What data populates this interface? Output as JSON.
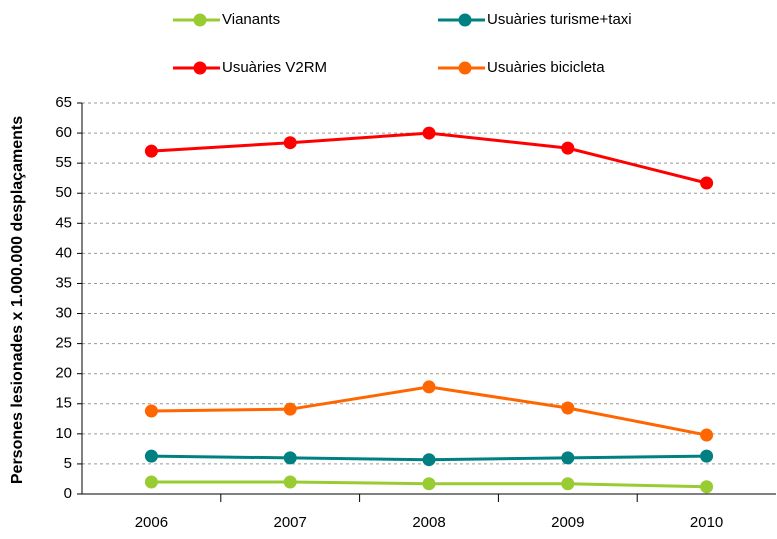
{
  "chart_data": {
    "type": "line",
    "y_label": "Persones lesionades x 1.000.000 desplaçaments",
    "categories": [
      "2006",
      "2007",
      "2008",
      "2009",
      "2010"
    ],
    "series": [
      {
        "name": "Vianants",
        "color": "#99cc33",
        "values": [
          2.0,
          2.0,
          1.7,
          1.7,
          1.2
        ]
      },
      {
        "name": "Usuàries turisme+taxi",
        "color": "#008080",
        "values": [
          6.3,
          6.0,
          5.7,
          6.0,
          6.3
        ]
      },
      {
        "name": "Usuàries V2RM",
        "color": "#ff0000",
        "values": [
          57.0,
          58.4,
          60.0,
          57.5,
          51.7
        ]
      },
      {
        "name": "Usuàries bicicleta",
        "color": "#ff6600",
        "values": [
          13.8,
          14.1,
          17.8,
          14.3,
          9.8
        ]
      }
    ],
    "ylim": [
      0,
      65
    ],
    "yticks": [
      0,
      5,
      10,
      15,
      20,
      25,
      30,
      35,
      40,
      45,
      50,
      55,
      60,
      65
    ],
    "grid": true
  }
}
